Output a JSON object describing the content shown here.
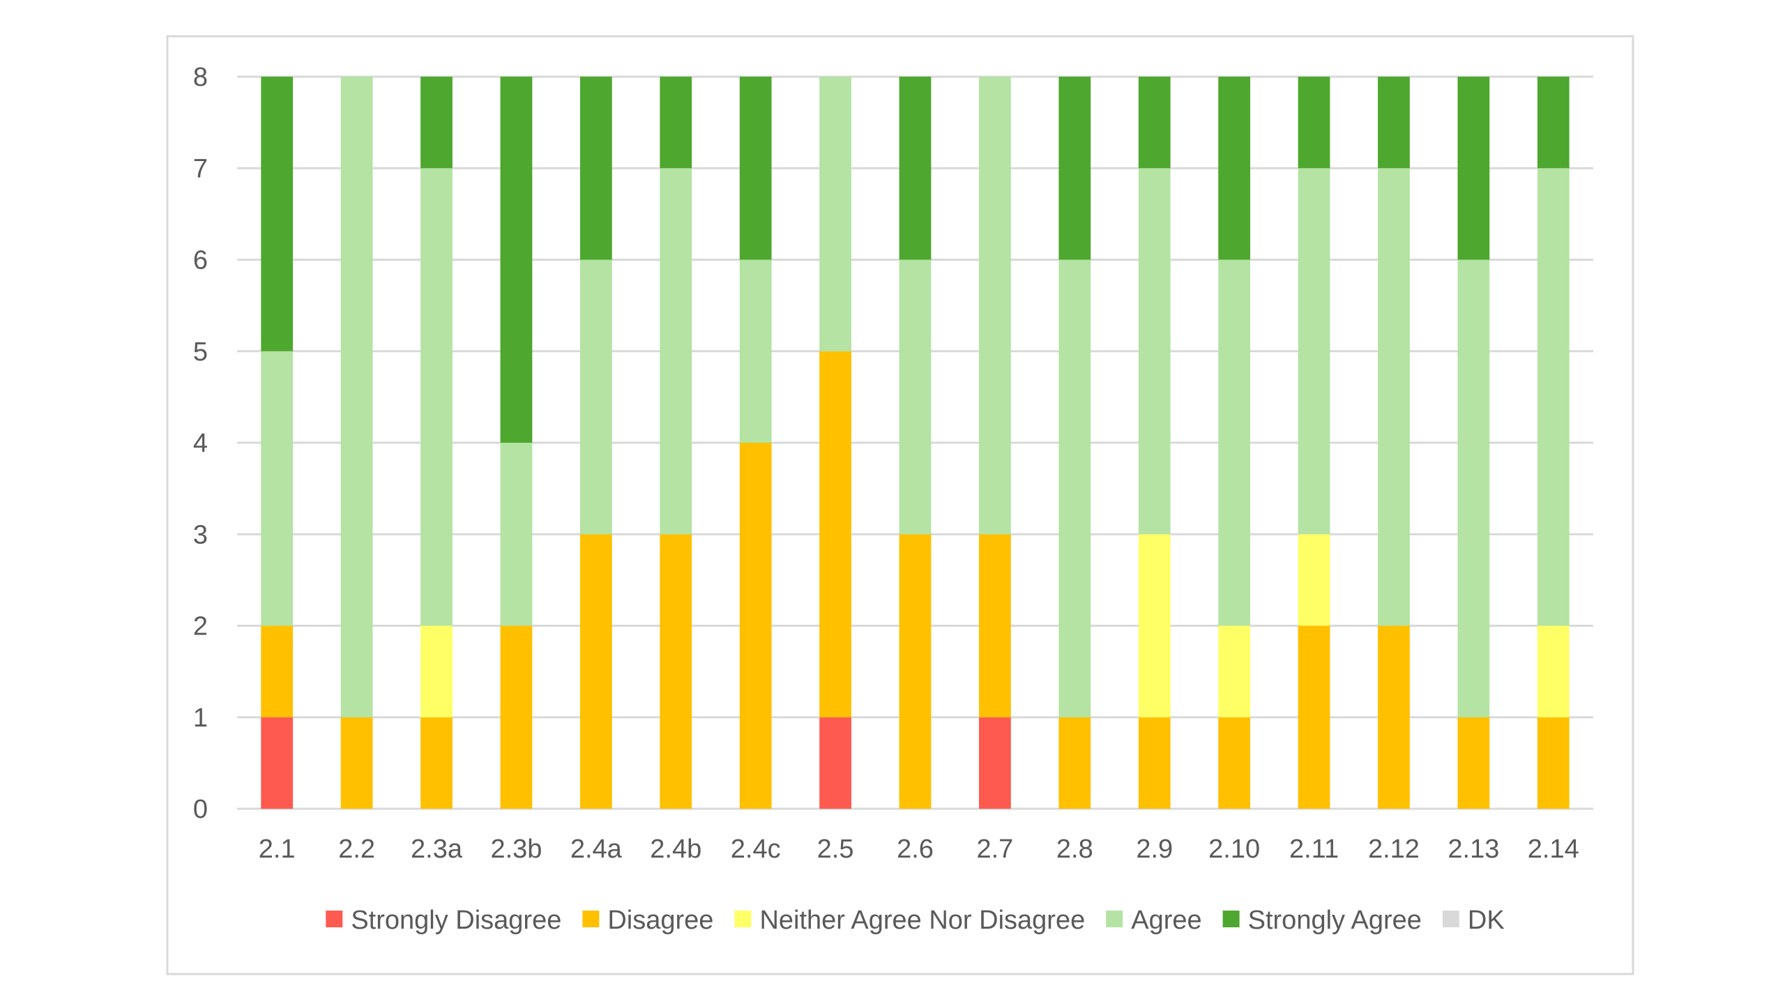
{
  "chart_data": {
    "type": "bar",
    "stacked": true,
    "title": "",
    "xlabel": "",
    "ylabel": "",
    "ylim": [
      0,
      8
    ],
    "yticks": [
      0,
      1,
      2,
      3,
      4,
      5,
      6,
      7,
      8
    ],
    "grid": true,
    "legend_position": "bottom",
    "categories": [
      "2.1",
      "2.2",
      "2.3a",
      "2.3b",
      "2.4a",
      "2.4b",
      "2.4c",
      "2.5",
      "2.6",
      "2.7",
      "2.8",
      "2.9",
      "2.10",
      "2.11",
      "2.12",
      "2.13",
      "2.14"
    ],
    "series": [
      {
        "name": "Strongly Disagree",
        "color": "#FF5A4F",
        "values": [
          1,
          0,
          0,
          0,
          0,
          0,
          0,
          1,
          0,
          1,
          0,
          0,
          0,
          0,
          0,
          0,
          0
        ]
      },
      {
        "name": "Disagree",
        "color": "#FFC000",
        "values": [
          1,
          1,
          1,
          2,
          3,
          3,
          4,
          4,
          3,
          2,
          1,
          1,
          1,
          2,
          2,
          1,
          1
        ]
      },
      {
        "name": "Neither Agree Nor Disagree",
        "color": "#FFFF66",
        "values": [
          0,
          0,
          1,
          0,
          0,
          0,
          0,
          0,
          0,
          0,
          0,
          2,
          1,
          1,
          0,
          0,
          1
        ]
      },
      {
        "name": "Agree",
        "color": "#B4E3A3",
        "values": [
          3,
          7,
          5,
          2,
          3,
          4,
          2,
          3,
          3,
          5,
          5,
          4,
          4,
          4,
          5,
          5,
          5
        ]
      },
      {
        "name": "Strongly Agree",
        "color": "#4EA72E",
        "values": [
          3,
          0,
          1,
          4,
          2,
          1,
          2,
          0,
          2,
          0,
          2,
          1,
          2,
          1,
          1,
          2,
          1
        ]
      },
      {
        "name": "DK",
        "color": "#D9D9D9",
        "values": [
          0,
          0,
          0,
          0,
          0,
          0,
          0,
          0,
          0,
          0,
          0,
          0,
          0,
          0,
          0,
          0,
          0
        ]
      }
    ],
    "colors": {
      "gridline": "#D9D9D9",
      "frame": "#D9D9D9",
      "text": "#595959"
    }
  }
}
